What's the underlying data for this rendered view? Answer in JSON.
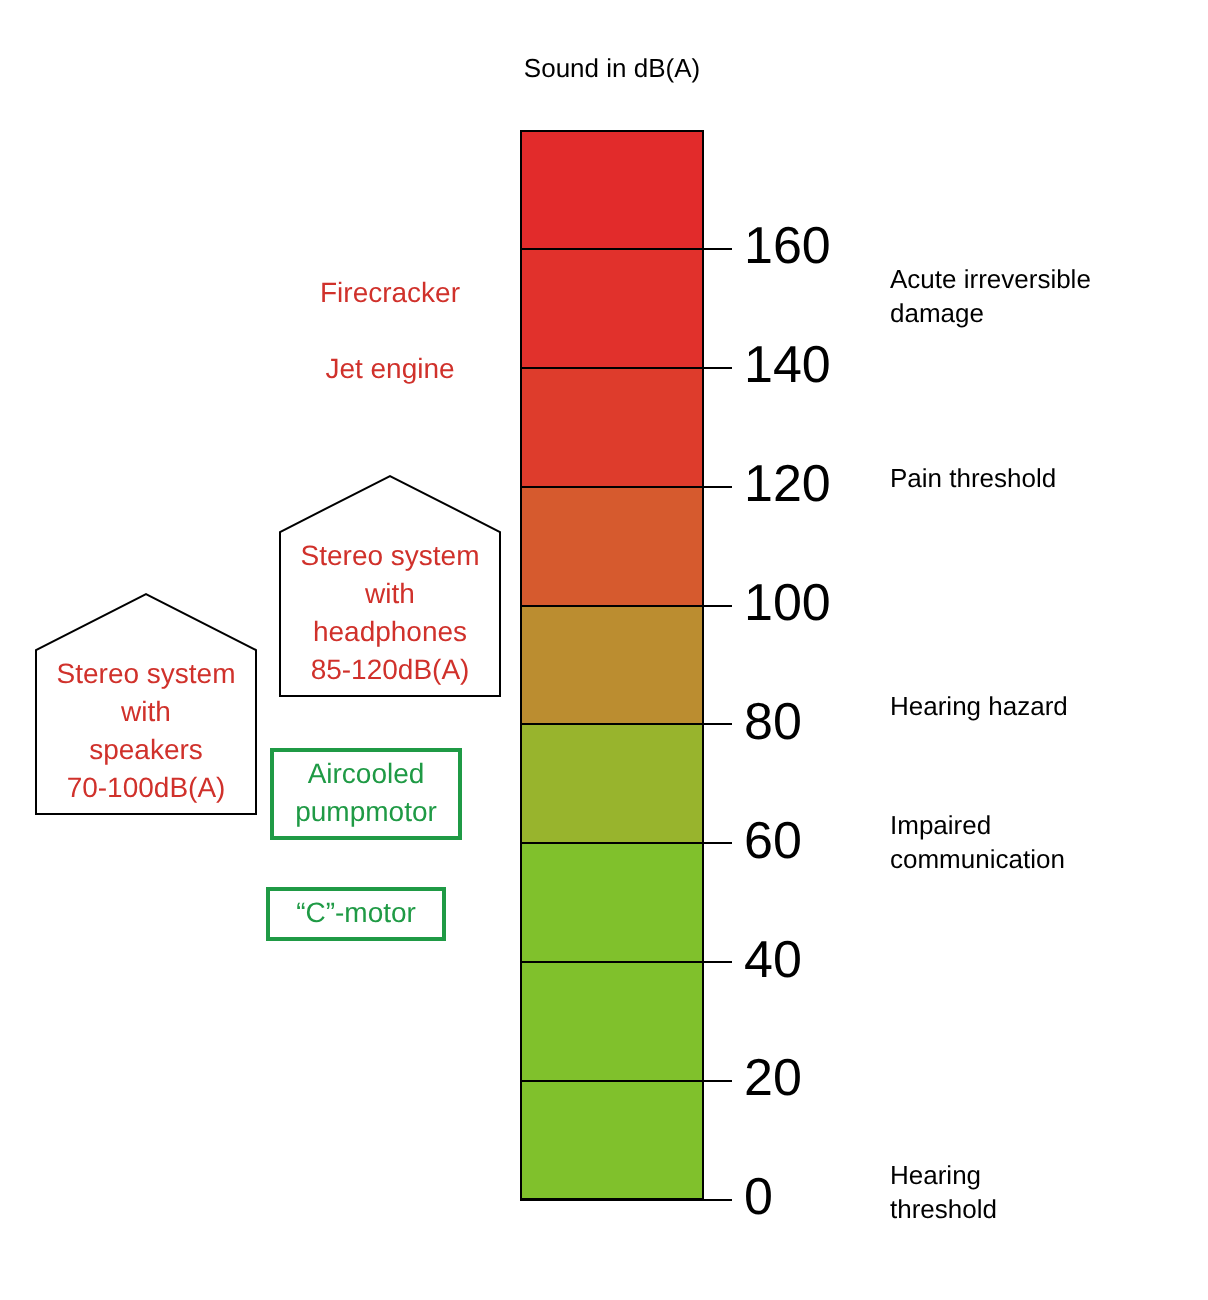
{
  "chart_data": {
    "type": "bar",
    "stacked": true,
    "ylabel": "Sound in dB(A)",
    "categories": [
      null
    ],
    "series": [
      {
        "color": "#80c12c",
        "values": [
          20
        ]
      },
      {
        "color": "#80c12c",
        "values": [
          20
        ]
      },
      {
        "color": "#80c12c",
        "values": [
          20
        ]
      },
      {
        "color": "#98b42d",
        "values": [
          20
        ]
      },
      {
        "color": "#bb8d30",
        "values": [
          20
        ]
      },
      {
        "color": "#d65a2e",
        "values": [
          20
        ]
      },
      {
        "color": "#de3c2c",
        "values": [
          20
        ]
      },
      {
        "color": "#e1312c",
        "values": [
          20
        ]
      },
      {
        "color": "#e22b2b",
        "values": [
          20
        ]
      }
    ],
    "ylim": [
      0,
      180
    ],
    "yticks": [
      0,
      20,
      40,
      60,
      80,
      100,
      120,
      140,
      160
    ],
    "grid": true,
    "legend": false,
    "annotations": [
      "Acute irreversible\ndamage",
      "Pain threshold",
      "Hearing hazard",
      "Impaired\ncommunication",
      "Hearing\nthreshold",
      "Firecracker",
      "Jet engine",
      "Stereo system\nwith\nheadphones\n85-120dB(A)",
      "Stereo system\nwith\nspeakers\n70-100dB(A)",
      "Aircooled\npumpmotor",
      "“C”-motor"
    ]
  }
}
